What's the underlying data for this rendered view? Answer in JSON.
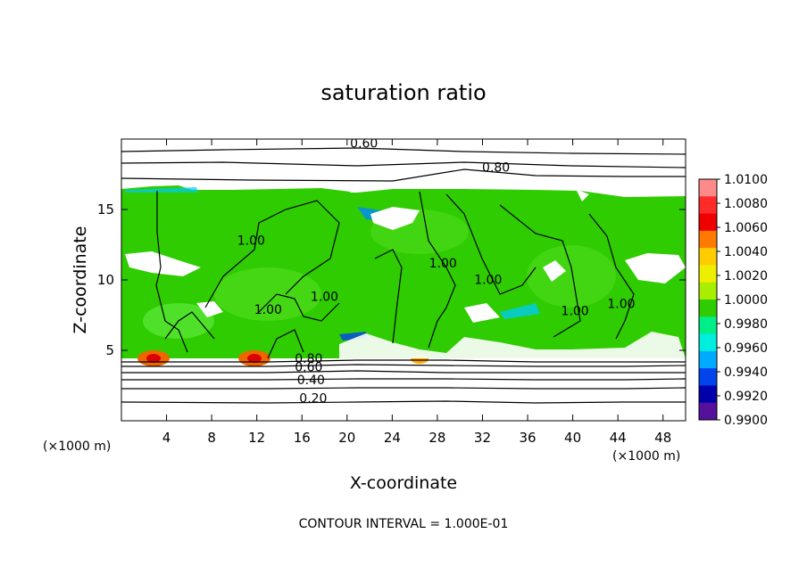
{
  "chart_data": {
    "type": "heatmap",
    "title": "saturation ratio",
    "xlabel": "X-coordinate",
    "ylabel": "Z-coordinate",
    "x_unit_left": "(×1000 m)",
    "x_unit_right": "(×1000 m)",
    "xlim": [
      0,
      50
    ],
    "ylim": [
      0,
      20
    ],
    "x_ticks": [
      4,
      8,
      12,
      16,
      20,
      24,
      28,
      32,
      36,
      40,
      44,
      48
    ],
    "y_ticks": [
      5,
      10,
      15
    ],
    "footer": "CONTOUR INTERVAL = 1.000E-01",
    "contour_labels": [
      {
        "text": "0.60",
        "x": 21.5,
        "y": 19.4
      },
      {
        "text": "0.80",
        "x": 33.2,
        "y": 17.7
      },
      {
        "text": "1.00",
        "x": 11.5,
        "y": 12.5
      },
      {
        "text": "1.00",
        "x": 18.0,
        "y": 8.5
      },
      {
        "text": "1.00",
        "x": 13.0,
        "y": 7.6
      },
      {
        "text": "1.00",
        "x": 28.5,
        "y": 10.9
      },
      {
        "text": "1.00",
        "x": 32.5,
        "y": 9.7
      },
      {
        "text": "1.00",
        "x": 40.2,
        "y": 7.5
      },
      {
        "text": "1.00",
        "x": 44.3,
        "y": 8.0
      },
      {
        "text": "0.80",
        "x": 16.6,
        "y": 4.1
      },
      {
        "text": "0.60",
        "x": 16.6,
        "y": 3.5
      },
      {
        "text": "0.40",
        "x": 16.8,
        "y": 2.6
      },
      {
        "text": "0.20",
        "x": 17.0,
        "y": 1.3
      }
    ],
    "colorbar": {
      "min": 0.99,
      "max": 1.01,
      "labels": [
        "1.0100",
        "1.0080",
        "1.0060",
        "1.0040",
        "1.0020",
        "1.0000",
        "0.9980",
        "0.9960",
        "0.9940",
        "0.9920",
        "0.9900"
      ],
      "colors": [
        "#ff8a8a",
        "#ff2a2a",
        "#ee0000",
        "#ff7a00",
        "#ffcc00",
        "#eeee00",
        "#a8ee00",
        "#2ecc00",
        "#00ee88",
        "#00eedd",
        "#00aaff",
        "#0044ee",
        "#0000aa",
        "#551199"
      ]
    }
  }
}
